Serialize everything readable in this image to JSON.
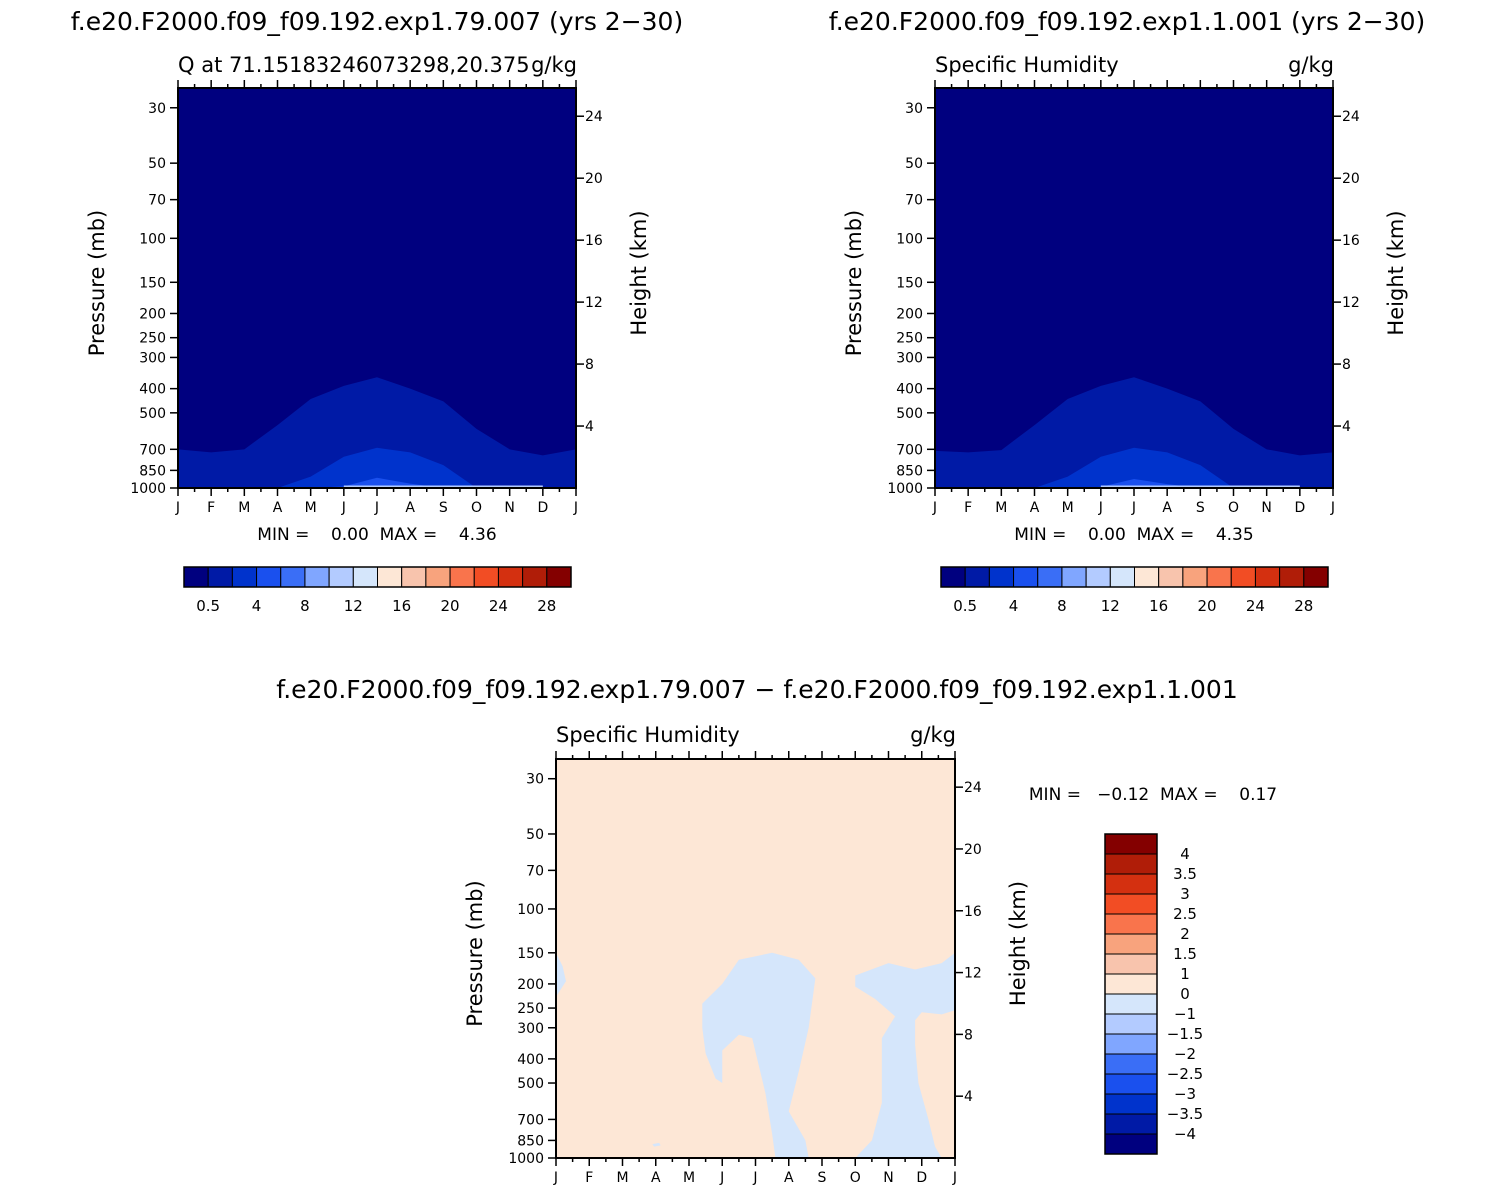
{
  "left_panel": {
    "exp_title": "f.e20.F2000.f09_f09.192.exp1.79.007 (yrs 2−30)",
    "plot_title": "Q at 71.15183246073298,20.375",
    "units": "g/kg",
    "min_max": "MIN =    0.00  MAX =    4.36"
  },
  "right_panel": {
    "exp_title": "f.e20.F2000.f09_f09.192.exp1.1.001 (yrs 2−30)",
    "plot_title": "Specific Humidity",
    "units": "g/kg",
    "min_max": "MIN =    0.00  MAX =    4.35"
  },
  "diff_panel": {
    "exp_title": "f.e20.F2000.f09_f09.192.exp1.79.007 − f.e20.F2000.f09_f09.192.exp1.1.001",
    "plot_title": "Specific Humidity",
    "units": "g/kg",
    "min_max": "MIN =   −0.12  MAX =    0.17"
  },
  "colors": {
    "abs_levels": [
      "#00007f",
      "#001aa6",
      "#0033cc",
      "#1a50ee",
      "#3a6ef6",
      "#80a6ff",
      "#b3cbff",
      "#d5e6fb",
      "#fde7d6",
      "#f8c4ad",
      "#f8a37d",
      "#f9744c",
      "#f24d24",
      "#d43010",
      "#b01d08",
      "#840000"
    ],
    "diff_levels": [
      "#00007f",
      "#001aa6",
      "#0033cc",
      "#1a50ee",
      "#3a6ef6",
      "#80a6ff",
      "#b3cbff",
      "#d5e6fb",
      "#fde7d6",
      "#f8c4ad",
      "#f8a37d",
      "#f9744c",
      "#f24d24",
      "#d43010",
      "#b01d08",
      "#840000"
    ],
    "diff_background": "#fde7d6",
    "diff_negative": "#d5e6fb"
  },
  "chart_data": [
    {
      "type": "contour",
      "panel": "left",
      "title": "Q at 71.15183246073298,20.375",
      "units": "g/kg",
      "x_tick_labels": [
        "J",
        "F",
        "M",
        "A",
        "M",
        "J",
        "J",
        "A",
        "S",
        "O",
        "N",
        "D",
        "J"
      ],
      "y_left_ticks": [
        30,
        50,
        70,
        100,
        150,
        200,
        250,
        300,
        400,
        500,
        700,
        850,
        1000
      ],
      "y_left_label": "Pressure (mb)",
      "y_right_ticks": [
        24,
        20,
        16,
        12,
        8,
        4
      ],
      "y_right_label": "Height (km)",
      "ylim_mb": [
        1000,
        25
      ],
      "colorbar_labels": [
        "0.5",
        "4",
        "8",
        "12",
        "16",
        "20",
        "24",
        "28"
      ],
      "min": 0.0,
      "max": 4.36,
      "contours_mb": {
        "level1_top": [
          700,
          720,
          700,
          560,
          440,
          390,
          360,
          400,
          450,
          580,
          700,
          740,
          700
        ],
        "level2_top": [
          1000,
          1000,
          1000,
          1000,
          900,
          750,
          690,
          720,
          810,
          1000,
          1000,
          1000,
          1000
        ],
        "level3_top": [
          1000,
          1000,
          1000,
          1000,
          1000,
          985,
          910,
          960,
          1000,
          1000,
          1000,
          1000,
          1000
        ]
      }
    },
    {
      "type": "contour",
      "panel": "right",
      "title": "Specific Humidity",
      "units": "g/kg",
      "x_tick_labels": [
        "J",
        "F",
        "M",
        "A",
        "M",
        "J",
        "J",
        "A",
        "S",
        "O",
        "N",
        "D",
        "J"
      ],
      "y_left_ticks": [
        30,
        50,
        70,
        100,
        150,
        200,
        250,
        300,
        400,
        500,
        700,
        850,
        1000
      ],
      "y_left_label": "Pressure (mb)",
      "y_right_ticks": [
        24,
        20,
        16,
        12,
        8,
        4
      ],
      "y_right_label": "Height (km)",
      "ylim_mb": [
        1000,
        25
      ],
      "colorbar_labels": [
        "0.5",
        "4",
        "8",
        "12",
        "16",
        "20",
        "24",
        "28"
      ],
      "min": 0.0,
      "max": 4.35,
      "contours_mb": {
        "level1_top": [
          710,
          720,
          705,
          560,
          440,
          390,
          360,
          400,
          450,
          580,
          700,
          740,
          720
        ],
        "level2_top": [
          1000,
          1000,
          1000,
          1000,
          900,
          750,
          690,
          720,
          810,
          1000,
          1000,
          1000,
          1000
        ],
        "level3_top": [
          1000,
          1000,
          1000,
          1000,
          1000,
          990,
          920,
          965,
          1000,
          1000,
          1000,
          1000,
          1000
        ]
      }
    },
    {
      "type": "contour",
      "panel": "difference",
      "title": "Specific Humidity",
      "units": "g/kg",
      "x_tick_labels": [
        "J",
        "F",
        "M",
        "A",
        "M",
        "J",
        "J",
        "A",
        "S",
        "O",
        "N",
        "D",
        "J"
      ],
      "y_left_ticks": [
        30,
        50,
        70,
        100,
        150,
        200,
        250,
        300,
        400,
        500,
        700,
        850,
        1000
      ],
      "y_left_label": "Pressure (mb)",
      "y_right_ticks": [
        24,
        20,
        16,
        12,
        8,
        4
      ],
      "y_right_label": "Height (km)",
      "ylim_mb": [
        1000,
        25
      ],
      "colorbar_labels": [
        "4",
        "3.5",
        "3",
        "2.5",
        "2",
        "1.5",
        "1",
        "0",
        "−1",
        "−1.5",
        "−2",
        "−2.5",
        "−3",
        "−3.5",
        "−4"
      ],
      "min": -0.12,
      "max": 0.17,
      "negative_regions": [
        [
          [
            0,
            150
          ],
          [
            0.2,
            170
          ],
          [
            0.3,
            195
          ],
          [
            0.1,
            215
          ],
          [
            0,
            225
          ]
        ],
        [
          [
            4.4,
            240
          ],
          [
            5.0,
            200
          ],
          [
            5.5,
            160
          ],
          [
            6.5,
            150
          ],
          [
            7.3,
            160
          ],
          [
            7.8,
            190
          ],
          [
            7.6,
            300
          ],
          [
            7.3,
            450
          ],
          [
            7.0,
            650
          ],
          [
            7.5,
            850
          ],
          [
            7.6,
            1000
          ],
          [
            6.6,
            1000
          ],
          [
            6.5,
            800
          ],
          [
            6.3,
            550
          ],
          [
            5.9,
            330
          ],
          [
            5.5,
            320
          ],
          [
            5.0,
            370
          ],
          [
            5.0,
            500
          ],
          [
            4.8,
            480
          ],
          [
            4.5,
            380
          ],
          [
            4.4,
            300
          ]
        ],
        [
          [
            9.0,
            185
          ],
          [
            10.0,
            165
          ],
          [
            10.8,
            175
          ],
          [
            11.6,
            165
          ],
          [
            12.0,
            150
          ],
          [
            12.0,
            255
          ],
          [
            11.6,
            265
          ],
          [
            11.0,
            260
          ],
          [
            10.8,
            280
          ],
          [
            10.8,
            350
          ],
          [
            10.9,
            500
          ],
          [
            11.2,
            700
          ],
          [
            11.4,
            900
          ],
          [
            11.6,
            1000
          ],
          [
            9.0,
            1000
          ],
          [
            9.5,
            850
          ],
          [
            9.8,
            600
          ],
          [
            9.8,
            330
          ],
          [
            10.2,
            270
          ],
          [
            9.6,
            230
          ],
          [
            9.0,
            205
          ]
        ],
        [
          [
            2.9,
            880
          ],
          [
            3.1,
            870
          ],
          [
            3.15,
            890
          ],
          [
            2.95,
            900
          ]
        ]
      ]
    }
  ]
}
